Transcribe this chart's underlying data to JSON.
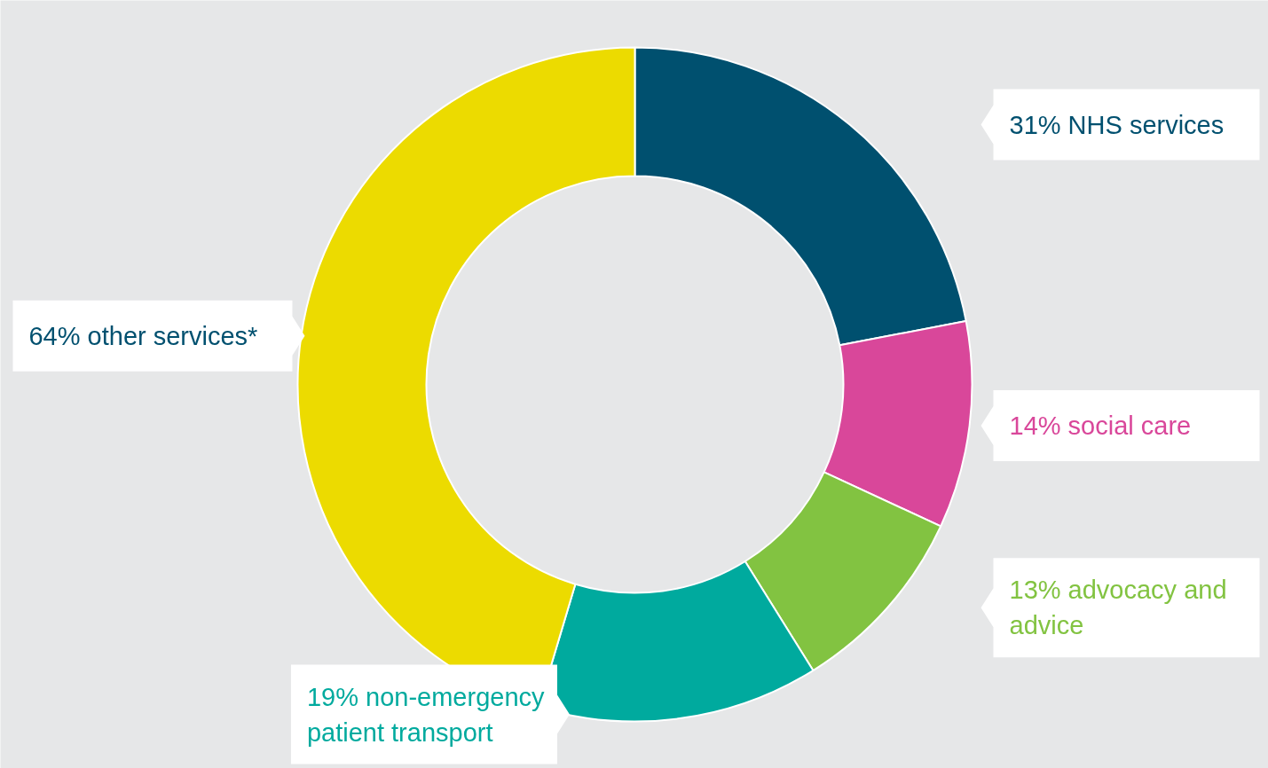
{
  "chart_data": {
    "type": "donut",
    "categories": [
      "NHS services",
      "social care",
      "advocacy and advice",
      "non-emergency patient transport",
      "other services*"
    ],
    "values": [
      31,
      14,
      13,
      19,
      64
    ],
    "value_labels": [
      "31%",
      "14%",
      "13%",
      "19%",
      "64%"
    ],
    "colors": [
      "#00506f",
      "#d9479a",
      "#82c341",
      "#00aa9e",
      "#ecdb00"
    ],
    "legend": false
  }
}
